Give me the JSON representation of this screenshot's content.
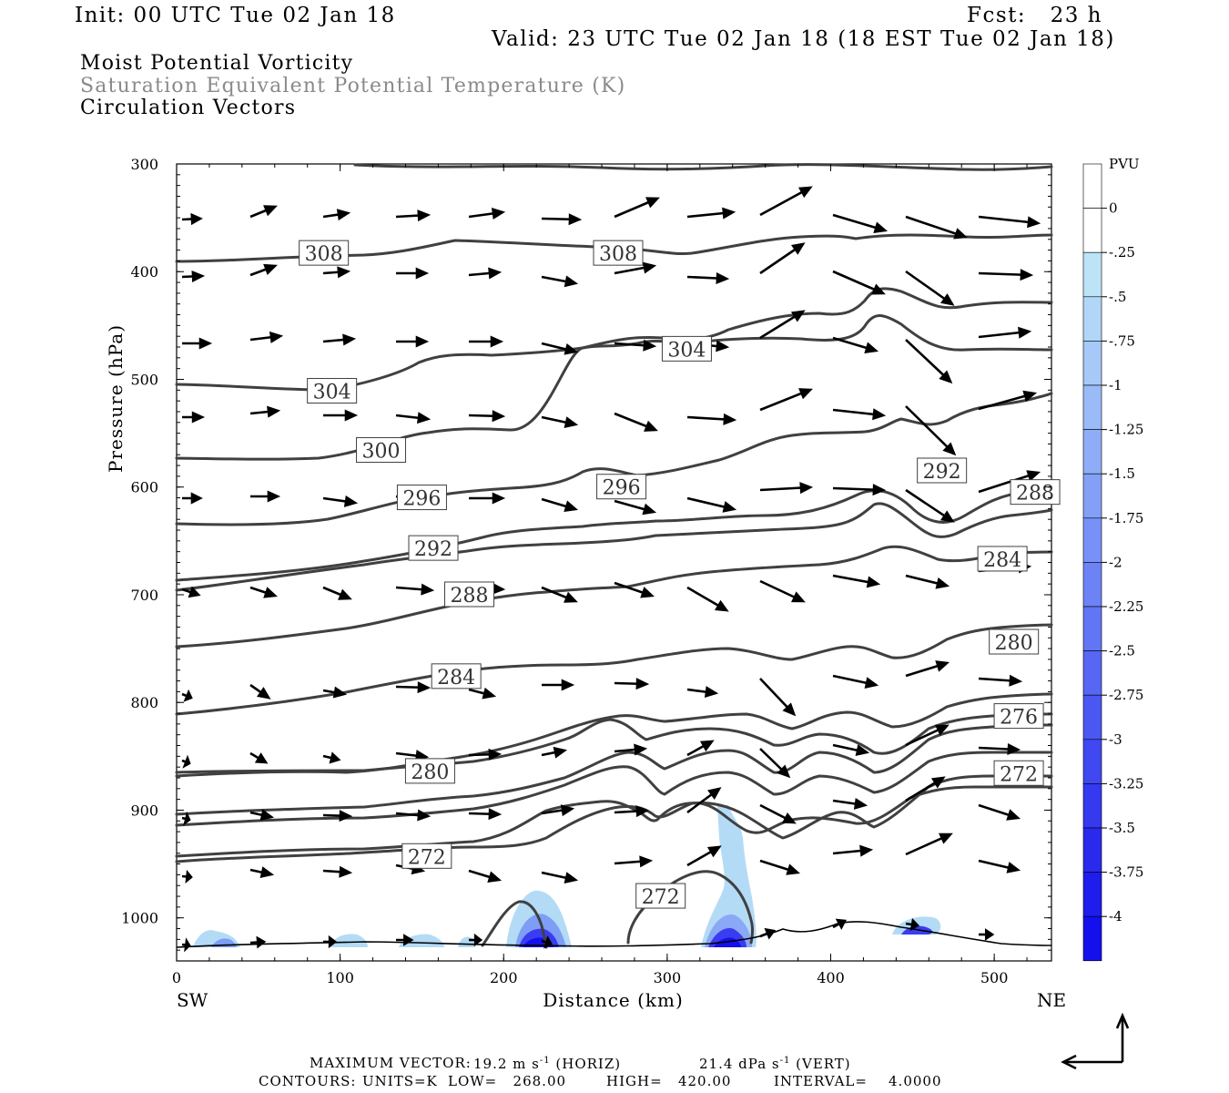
{
  "header": {
    "init": "Init: 00 UTC Tue 02 Jan 18",
    "fcst": "Fcst:   23 h",
    "valid": "Valid: 23 UTC Tue 02 Jan 18 (18 EST Tue 02 Jan 18)"
  },
  "titles": {
    "line1": "Moist Potential Vorticity",
    "line2": "Saturation Equivalent Potential Temperature (K)",
    "line3": "Circulation Vectors"
  },
  "chart_data": {
    "type": "cross-section",
    "xlabel": "Distance (km)",
    "ylabel": "Pressure (hPa)",
    "xlim": [
      0,
      535
    ],
    "ylim": [
      300,
      1040
    ],
    "y_inverted": true,
    "x_ticks": [
      "0",
      "100",
      "200",
      "300",
      "400",
      "500"
    ],
    "y_ticks": [
      "300",
      "400",
      "500",
      "600",
      "700",
      "800",
      "900",
      "1000"
    ],
    "left_end_label": "SW",
    "right_end_label": "NE",
    "colorbar": {
      "units": "PVU",
      "labels": [
        "0",
        "-.25",
        "-.5",
        "-.75",
        "-1",
        "-1.25",
        "-1.5",
        "-1.75",
        "-2",
        "-2.25",
        "-2.5",
        "-2.75",
        "-3",
        "-3.25",
        "-3.5",
        "-3.75",
        "-4"
      ],
      "colors": [
        "#ffffff",
        "#ffffff",
        "#bde3f7",
        "#b1d6f8",
        "#a6c9f8",
        "#9abbf8",
        "#8fadf7",
        "#849ff6",
        "#7891f6",
        "#6d83f5",
        "#6275f4",
        "#5766f3",
        "#4b57f2",
        "#4048f1",
        "#3539f0",
        "#2a2aef",
        "#1f1cee",
        "#1410ed"
      ]
    },
    "contour_labels": [
      {
        "text": "308",
        "x": 90,
        "p": 383
      },
      {
        "text": "308",
        "x": 270,
        "p": 383
      },
      {
        "text": "304",
        "x": 312,
        "p": 472
      },
      {
        "text": "304",
        "x": 95,
        "p": 511
      },
      {
        "text": "300",
        "x": 125,
        "p": 566
      },
      {
        "text": "296",
        "x": 150,
        "p": 610
      },
      {
        "text": "296",
        "x": 272,
        "p": 600
      },
      {
        "text": "292",
        "x": 468,
        "p": 585
      },
      {
        "text": "288",
        "x": 525,
        "p": 605
      },
      {
        "text": "292",
        "x": 157,
        "p": 657
      },
      {
        "text": "284",
        "x": 505,
        "p": 667
      },
      {
        "text": "288",
        "x": 179,
        "p": 700
      },
      {
        "text": "280",
        "x": 512,
        "p": 744
      },
      {
        "text": "284",
        "x": 171,
        "p": 776
      },
      {
        "text": "276",
        "x": 515,
        "p": 813
      },
      {
        "text": "280",
        "x": 155,
        "p": 864
      },
      {
        "text": "272",
        "x": 515,
        "p": 866
      },
      {
        "text": "272",
        "x": 153,
        "p": 943
      },
      {
        "text": "272",
        "x": 296,
        "p": 980
      }
    ],
    "max_vector": {
      "label": "MAXIMUM VECTOR:",
      "horiz": "19.2 m s",
      "horiz_suffix": "(HORIZ)",
      "vert": "21.4 dPa s",
      "vert_suffix": "(VERT)",
      "exp": "-1"
    },
    "contours_info": {
      "label": "CONTOURS:",
      "units": "UNITS=K",
      "low": "LOW=   268.00",
      "high": "HIGH=   420.00",
      "interval": "INTERVAL=    4.0000"
    }
  }
}
